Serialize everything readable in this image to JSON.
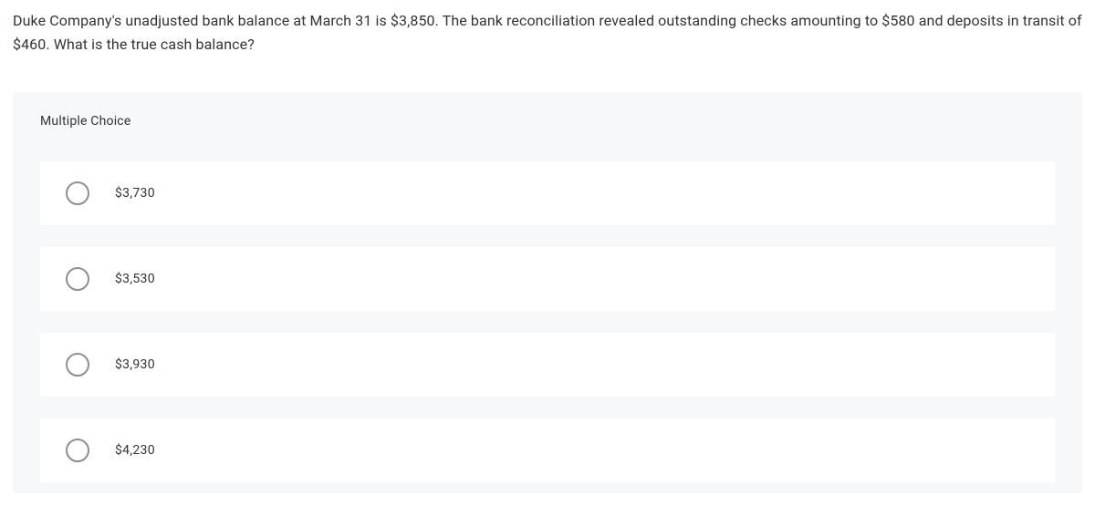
{
  "question": {
    "text": "Duke Company's unadjusted bank balance at March 31 is $3,850. The bank reconciliation revealed outstanding checks amounting to $580 and deposits in transit of $460. What is the true cash balance?"
  },
  "multiple_choice": {
    "header": "Multiple Choice",
    "options": [
      {
        "label": "$3,730"
      },
      {
        "label": "$3,530"
      },
      {
        "label": "$3,930"
      },
      {
        "label": "$4,230"
      }
    ]
  },
  "colors": {
    "background": "#ffffff",
    "panel_background": "#f7f8fa",
    "option_background": "#ffffff",
    "text": "#333333",
    "radio_border": "#8a8f98"
  },
  "typography": {
    "question_fontsize": 16,
    "header_fontsize": 14,
    "option_fontsize": 14
  }
}
